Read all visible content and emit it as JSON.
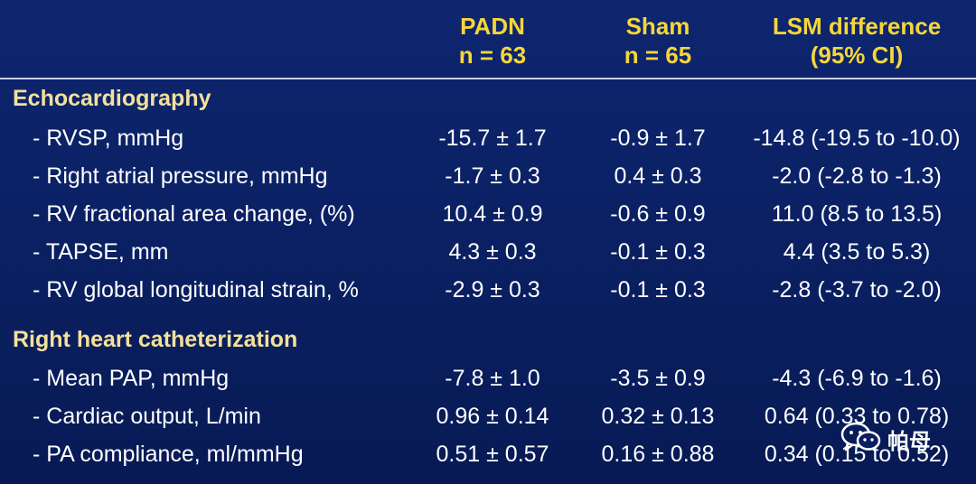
{
  "columns": {
    "padn": {
      "title": "PADN",
      "n": "n = 63"
    },
    "sham": {
      "title": "Sham",
      "n": "n = 65"
    },
    "diff": {
      "title": "LSM difference",
      "sub": "(95% CI)"
    }
  },
  "sections": [
    {
      "title": "Echocardiography",
      "rows": [
        {
          "label": "- RVSP, mmHg",
          "padn": "-15.7 ± 1.7",
          "sham": "-0.9 ± 1.7",
          "diff": "-14.8 (-19.5 to -10.0)"
        },
        {
          "label": "- Right atrial pressure, mmHg",
          "padn": "-1.7 ± 0.3",
          "sham": "0.4 ± 0.3",
          "diff": "-2.0 (-2.8 to -1.3)"
        },
        {
          "label": "- RV fractional area change, (%)",
          "padn": "10.4 ± 0.9",
          "sham": "-0.6 ± 0.9",
          "diff": "11.0 (8.5 to 13.5)"
        },
        {
          "label": "- TAPSE, mm",
          "padn": "4.3 ± 0.3",
          "sham": "-0.1 ± 0.3",
          "diff": "4.4 (3.5 to 5.3)"
        },
        {
          "label": "- RV global longitudinal strain, %",
          "padn": "-2.9 ± 0.3",
          "sham": "-0.1 ± 0.3",
          "diff": "-2.8 (-3.7 to -2.0)"
        }
      ]
    },
    {
      "title": "Right heart catheterization",
      "rows": [
        {
          "label": "- Mean PAP, mmHg",
          "padn": "-7.8 ± 1.0",
          "sham": "-3.5 ± 0.9",
          "diff": "-4.3 (-6.9 to -1.6)"
        },
        {
          "label": "- Cardiac output, L/min",
          "padn": "0.96 ± 0.14",
          "sham": "0.32 ± 0.13",
          "diff": "0.64 (0.33 to 0.78)"
        },
        {
          "label": "- PA compliance, ml/mmHg",
          "padn": "0.51 ± 0.57",
          "sham": "0.16 ± 0.88",
          "diff": "0.34 (0.15 to 0.52)"
        }
      ]
    }
  ],
  "watermark": {
    "text": "帕母",
    "icon": "wechat-icon"
  },
  "colors": {
    "background": "#0b2164",
    "header_text": "#f5d63a",
    "section_text": "#f3e19b",
    "body_text": "#ffffff"
  }
}
